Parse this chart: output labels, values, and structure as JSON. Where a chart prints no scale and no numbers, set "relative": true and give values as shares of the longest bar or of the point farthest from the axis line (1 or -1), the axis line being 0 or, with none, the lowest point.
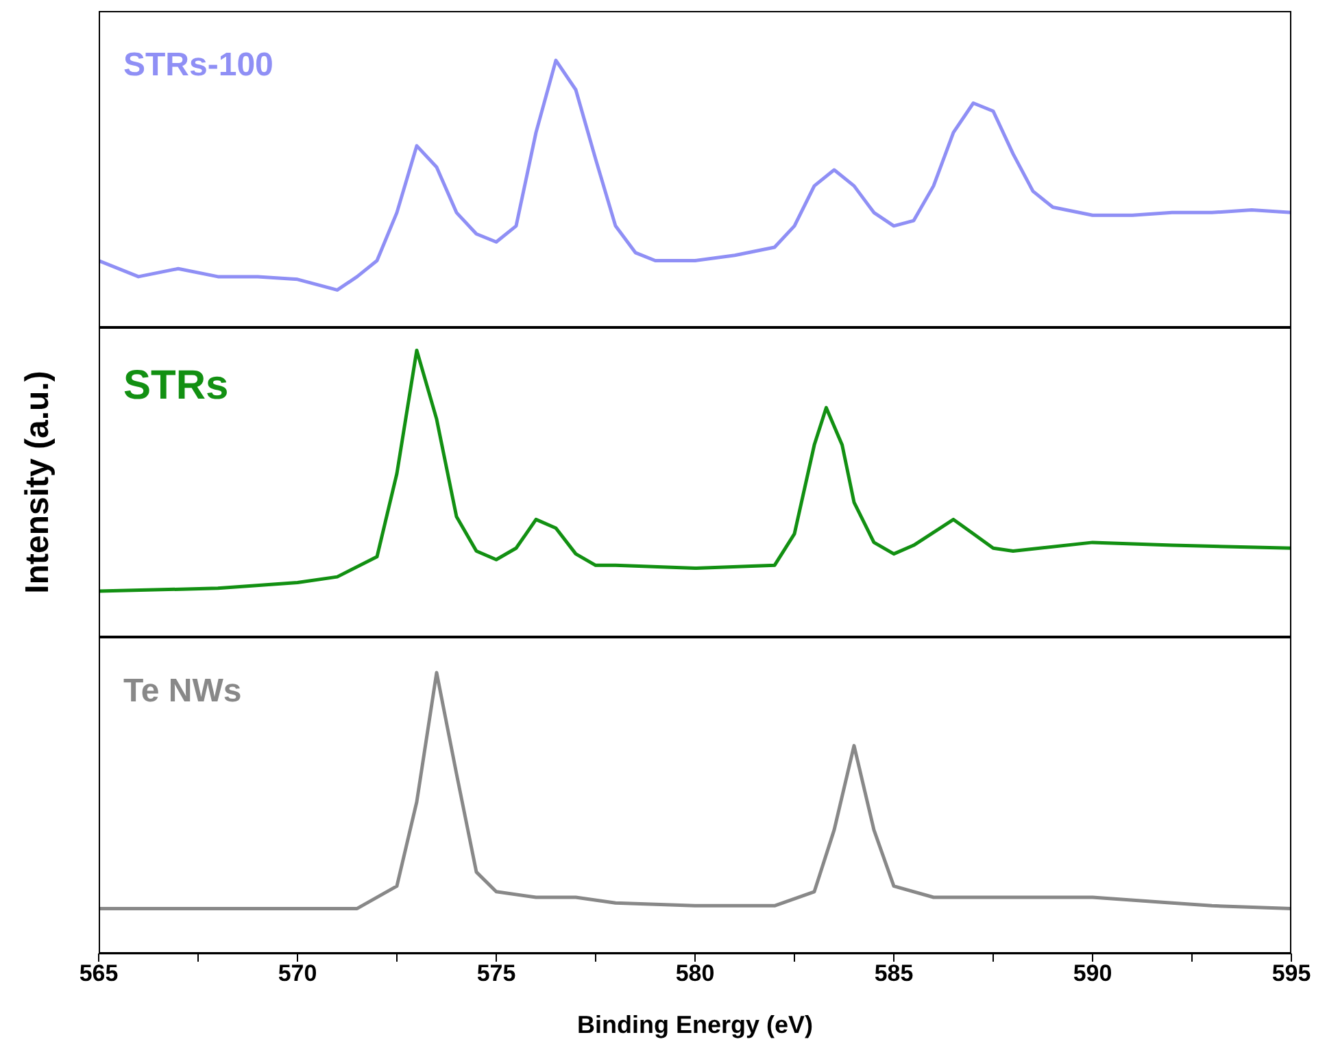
{
  "chart_data": [
    {
      "type": "line",
      "relative": true,
      "xlim": [
        565,
        595
      ],
      "tick_labels": false,
      "grid": false,
      "marker": "none",
      "series": [
        {
          "name": "STRs-100",
          "color": "#8f8ff5",
          "x": [
            565,
            566,
            567,
            568,
            569,
            570,
            571,
            571.5,
            572,
            572.5,
            573,
            573.5,
            574,
            574.5,
            575,
            575.5,
            576,
            576.5,
            577,
            577.5,
            578,
            578.5,
            579,
            580,
            581,
            582,
            582.5,
            583,
            583.5,
            584,
            584.5,
            585,
            585.5,
            586,
            586.5,
            587,
            587.5,
            588,
            588.5,
            589,
            590,
            591,
            592,
            593,
            594,
            595
          ],
          "values": [
            0.25,
            0.19,
            0.22,
            0.19,
            0.19,
            0.18,
            0.14,
            0.19,
            0.25,
            0.43,
            0.68,
            0.6,
            0.43,
            0.35,
            0.32,
            0.38,
            0.73,
            1,
            0.89,
            0.63,
            0.38,
            0.28,
            0.25,
            0.25,
            0.27,
            0.3,
            0.38,
            0.53,
            0.59,
            0.53,
            0.43,
            0.38,
            0.4,
            0.53,
            0.73,
            0.84,
            0.81,
            0.65,
            0.51,
            0.45,
            0.42,
            0.42,
            0.43,
            0.43,
            0.44,
            0.43
          ]
        }
      ]
    },
    {
      "type": "line",
      "relative": true,
      "xlim": [
        565,
        595
      ],
      "tick_labels": false,
      "grid": false,
      "marker": "none",
      "ylabel": "Intensity (a.u.)",
      "series": [
        {
          "name": "STRs",
          "color": "#129012",
          "x": [
            565,
            568,
            570,
            571,
            572,
            572.5,
            573,
            573.5,
            574,
            574.5,
            575,
            575.5,
            576,
            576.5,
            577,
            577.5,
            578,
            580,
            582,
            582.5,
            583,
            583.3,
            583.7,
            584,
            584.5,
            585,
            585.5,
            586.5,
            587,
            587.5,
            588,
            590,
            592,
            595
          ],
          "values": [
            0.16,
            0.17,
            0.19,
            0.21,
            0.28,
            0.57,
            1,
            0.76,
            0.42,
            0.3,
            0.27,
            0.31,
            0.41,
            0.38,
            0.29,
            0.25,
            0.25,
            0.24,
            0.25,
            0.36,
            0.67,
            0.8,
            0.67,
            0.47,
            0.33,
            0.29,
            0.32,
            0.41,
            0.36,
            0.31,
            0.3,
            0.33,
            0.32,
            0.31
          ]
        }
      ]
    },
    {
      "type": "line",
      "relative": true,
      "xlim": [
        565,
        595
      ],
      "xticks": [
        565,
        {
          "value": 567.5,
          "label": null
        },
        570,
        {
          "value": 572.5,
          "label": null
        },
        575,
        {
          "value": 577.5,
          "label": null
        },
        580,
        {
          "value": 582.5,
          "label": null
        },
        585,
        {
          "value": 587.5,
          "label": null
        },
        590,
        {
          "value": 592.5,
          "label": null
        },
        595
      ],
      "tick_labels": "x",
      "grid": false,
      "marker": "none",
      "xlabel": "Binding Energy (eV)",
      "series": [
        {
          "name": "Te NWs",
          "color": "#888888",
          "x": [
            565,
            570,
            571.5,
            572.5,
            573,
            573.5,
            574,
            574.5,
            575,
            576,
            577,
            578,
            580,
            582,
            583,
            583.5,
            584,
            584.5,
            585,
            586,
            588,
            590,
            592,
            593,
            595
          ],
          "values": [
            0.16,
            0.16,
            0.16,
            0.24,
            0.54,
            1,
            0.64,
            0.29,
            0.22,
            0.2,
            0.2,
            0.18,
            0.17,
            0.17,
            0.22,
            0.44,
            0.74,
            0.44,
            0.24,
            0.2,
            0.2,
            0.2,
            0.18,
            0.17,
            0.16
          ]
        }
      ]
    }
  ]
}
